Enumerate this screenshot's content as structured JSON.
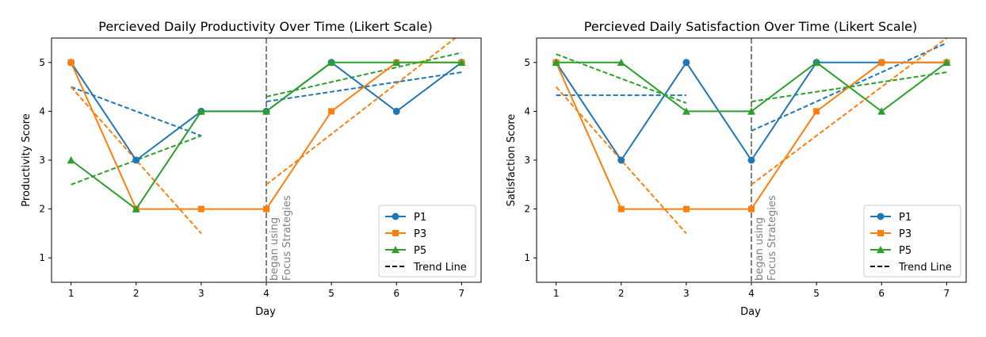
{
  "colors": {
    "P1": "#1f77b4",
    "P3": "#ff7f0e",
    "P5": "#2ca02c",
    "event_line": "#808080",
    "trend_legend": "#000000"
  },
  "chart_data": [
    {
      "type": "line",
      "title": "Percieved Daily Productivity Over Time (Likert Scale)",
      "xlabel": "Day",
      "ylabel": "Productivity Score",
      "xlim": [
        0.7,
        7.3
      ],
      "ylim": [
        0.5,
        5.5
      ],
      "xticks": [
        1,
        2,
        3,
        4,
        5,
        6,
        7
      ],
      "yticks": [
        1,
        2,
        3,
        4,
        5
      ],
      "grid": false,
      "legend": {
        "placement": "lower-right",
        "entries": [
          {
            "label": "P1",
            "series": "P1"
          },
          {
            "label": "P3",
            "series": "P3"
          },
          {
            "label": "P5",
            "series": "P5"
          },
          {
            "label": "Trend Line",
            "series": "trend"
          }
        ]
      },
      "event": {
        "x": 4,
        "label_lines": [
          "began using",
          "Focus Strategies"
        ]
      },
      "series": [
        {
          "name": "P1",
          "marker": "circle",
          "x": [
            1,
            2,
            3,
            4,
            5,
            6,
            7
          ],
          "values": [
            5,
            3,
            4,
            4,
            5,
            4,
            5
          ]
        },
        {
          "name": "P3",
          "marker": "square",
          "x": [
            1,
            2,
            3,
            4,
            5,
            6,
            7
          ],
          "values": [
            5,
            2,
            2,
            2,
            4,
            5,
            5
          ]
        },
        {
          "name": "P5",
          "marker": "triangle",
          "x": [
            1,
            2,
            3,
            4,
            5,
            6,
            7
          ],
          "values": [
            3,
            2,
            4,
            4,
            5,
            5,
            5
          ]
        }
      ],
      "trend_lines": [
        {
          "series": "P1",
          "x": [
            1,
            3
          ],
          "y": [
            4.5,
            3.5
          ]
        },
        {
          "series": "P3",
          "x": [
            1,
            3
          ],
          "y": [
            4.5,
            1.5
          ]
        },
        {
          "series": "P5",
          "x": [
            1,
            3
          ],
          "y": [
            2.5,
            3.5
          ]
        },
        {
          "series": "P1",
          "x": [
            4,
            7
          ],
          "y": [
            4.2,
            4.8
          ]
        },
        {
          "series": "P3",
          "x": [
            4,
            7
          ],
          "y": [
            2.5,
            5.6
          ]
        },
        {
          "series": "P5",
          "x": [
            4,
            7
          ],
          "y": [
            4.3,
            5.2
          ]
        }
      ]
    },
    {
      "type": "line",
      "title": "Percieved Daily Satisfaction Over Time (Likert Scale)",
      "xlabel": "Day",
      "ylabel": "Satisfaction Score",
      "xlim": [
        0.7,
        7.3
      ],
      "ylim": [
        0.5,
        5.5
      ],
      "xticks": [
        1,
        2,
        3,
        4,
        5,
        6,
        7
      ],
      "yticks": [
        1,
        2,
        3,
        4,
        5
      ],
      "grid": false,
      "legend": {
        "placement": "lower-right",
        "entries": [
          {
            "label": "P1",
            "series": "P1"
          },
          {
            "label": "P3",
            "series": "P3"
          },
          {
            "label": "P5",
            "series": "P5"
          },
          {
            "label": "Trend Line",
            "series": "trend"
          }
        ]
      },
      "event": {
        "x": 4,
        "label_lines": [
          "began using",
          "Focus Strategies"
        ]
      },
      "series": [
        {
          "name": "P1",
          "marker": "circle",
          "x": [
            1,
            2,
            3,
            4,
            5,
            6,
            7
          ],
          "values": [
            5,
            3,
            5,
            3,
            5,
            5,
            5
          ]
        },
        {
          "name": "P3",
          "marker": "square",
          "x": [
            1,
            2,
            3,
            4,
            5,
            6,
            7
          ],
          "values": [
            5,
            2,
            2,
            2,
            4,
            5,
            5
          ]
        },
        {
          "name": "P5",
          "marker": "triangle",
          "x": [
            1,
            2,
            3,
            4,
            5,
            6,
            7
          ],
          "values": [
            5,
            5,
            4,
            4,
            5,
            4,
            5
          ]
        }
      ],
      "trend_lines": [
        {
          "series": "P1",
          "x": [
            1,
            3
          ],
          "y": [
            4.33,
            4.33
          ]
        },
        {
          "series": "P3",
          "x": [
            1,
            3
          ],
          "y": [
            4.5,
            1.5
          ]
        },
        {
          "series": "P5",
          "x": [
            1,
            3
          ],
          "y": [
            5.17,
            4.17
          ]
        },
        {
          "series": "P1",
          "x": [
            4,
            7
          ],
          "y": [
            3.6,
            5.4
          ]
        },
        {
          "series": "P3",
          "x": [
            4,
            7
          ],
          "y": [
            2.5,
            5.5
          ]
        },
        {
          "series": "P5",
          "x": [
            4,
            7
          ],
          "y": [
            4.2,
            4.8
          ]
        }
      ]
    }
  ]
}
